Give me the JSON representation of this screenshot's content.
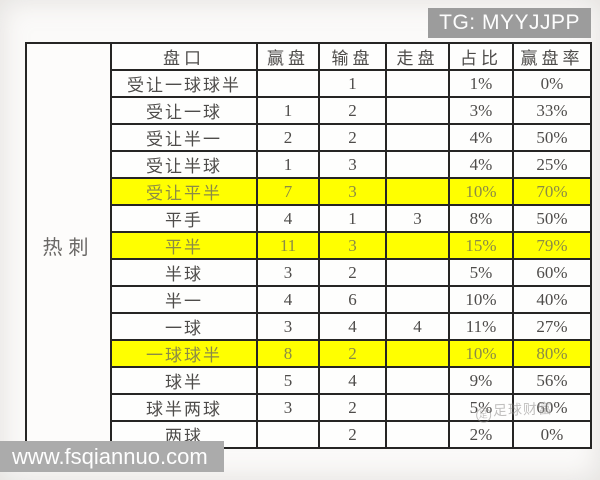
{
  "badges": {
    "telegram": "TG: MYYJJPP",
    "website": "www.fsqiannuo.com"
  },
  "team_label": "热刺",
  "watermark": {
    "icon": "足",
    "text": "足球财富"
  },
  "colors": {
    "highlight": "#ffff00",
    "border": "#262524",
    "badge_gray": "#9c9c9c"
  },
  "table": {
    "columns": [
      "盘口",
      "赢盘",
      "输盘",
      "走盘",
      "占比",
      "赢盘率"
    ],
    "rows": [
      {
        "handicap": "受让一球球半",
        "win": "",
        "lose": "1",
        "push": "",
        "share": "1%",
        "win_rate": "0%",
        "highlight": false
      },
      {
        "handicap": "受让一球",
        "win": "1",
        "lose": "2",
        "push": "",
        "share": "3%",
        "win_rate": "33%",
        "highlight": false
      },
      {
        "handicap": "受让半一",
        "win": "2",
        "lose": "2",
        "push": "",
        "share": "4%",
        "win_rate": "50%",
        "highlight": false
      },
      {
        "handicap": "受让半球",
        "win": "1",
        "lose": "3",
        "push": "",
        "share": "4%",
        "win_rate": "25%",
        "highlight": false
      },
      {
        "handicap": "受让平半",
        "win": "7",
        "lose": "3",
        "push": "",
        "share": "10%",
        "win_rate": "70%",
        "highlight": true
      },
      {
        "handicap": "平手",
        "win": "4",
        "lose": "1",
        "push": "3",
        "share": "8%",
        "win_rate": "50%",
        "highlight": false
      },
      {
        "handicap": "平半",
        "win": "11",
        "lose": "3",
        "push": "",
        "share": "15%",
        "win_rate": "79%",
        "highlight": true
      },
      {
        "handicap": "半球",
        "win": "3",
        "lose": "2",
        "push": "",
        "share": "5%",
        "win_rate": "60%",
        "highlight": false
      },
      {
        "handicap": "半一",
        "win": "4",
        "lose": "6",
        "push": "",
        "share": "10%",
        "win_rate": "40%",
        "highlight": false
      },
      {
        "handicap": "一球",
        "win": "3",
        "lose": "4",
        "push": "4",
        "share": "11%",
        "win_rate": "27%",
        "highlight": false
      },
      {
        "handicap": "一球球半",
        "win": "8",
        "lose": "2",
        "push": "",
        "share": "10%",
        "win_rate": "80%",
        "highlight": true
      },
      {
        "handicap": "球半",
        "win": "5",
        "lose": "4",
        "push": "",
        "share": "9%",
        "win_rate": "56%",
        "highlight": false
      },
      {
        "handicap": "球半两球",
        "win": "3",
        "lose": "2",
        "push": "",
        "share": "5%",
        "win_rate": "60%",
        "highlight": false
      },
      {
        "handicap": "两球",
        "win": "",
        "lose": "2",
        "push": "",
        "share": "2%",
        "win_rate": "0%",
        "highlight": false
      }
    ]
  }
}
